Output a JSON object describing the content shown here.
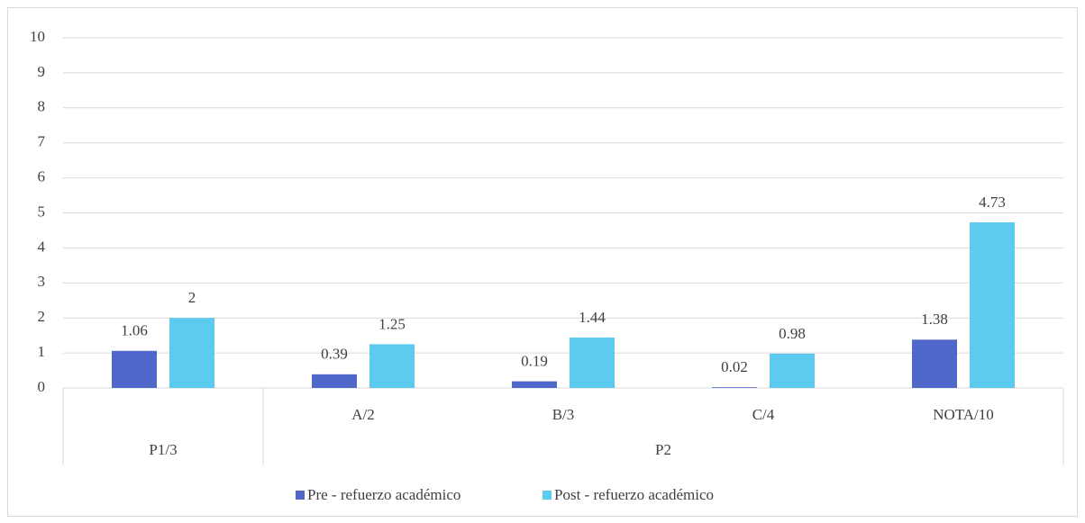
{
  "chart_data": {
    "type": "bar",
    "categories": [
      null,
      "A/2",
      "B/3",
      "C/4",
      "NOTA/10"
    ],
    "category_groups": [
      "P1/3",
      "P2",
      "P2",
      "P2",
      "P2"
    ],
    "series": [
      {
        "name": "Pre - refuerzo académico",
        "color": "#4f67c9",
        "values": [
          1.06,
          0.39,
          0.19,
          0.02,
          1.38
        ]
      },
      {
        "name": "Post - refuerzo académico",
        "color": "#5dcbf0",
        "values": [
          2,
          1.25,
          1.44,
          0.98,
          4.73
        ]
      }
    ],
    "ylim": [
      0,
      10
    ],
    "yticks": [
      0,
      1,
      2,
      3,
      4,
      5,
      6,
      7,
      8,
      9,
      10
    ],
    "grid": true,
    "legend": "bottom"
  }
}
